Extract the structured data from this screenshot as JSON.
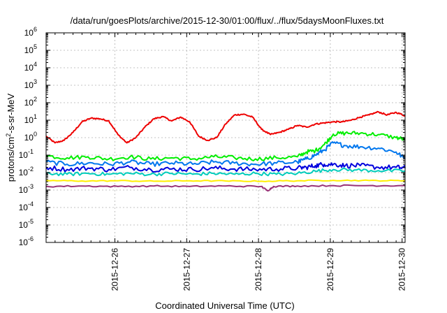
{
  "chart_data": {
    "type": "line",
    "title": "/data/run/goesPlots/archive/2015-12-30/01:00/flux/../flux/5daysMoonFluxes.txt",
    "xlabel": "Coordinated Universal Time (UTC)",
    "ylabel": "protons/cm2-s-sr-MeV",
    "ylabel_parts": [
      "protons/cm",
      "2",
      "-s-sr-MeV"
    ],
    "y_scale": "log",
    "ylim": [
      1e-06,
      1000000.0
    ],
    "y_ticks": [
      {
        "base": "10",
        "exp": "-6",
        "value": 1e-06
      },
      {
        "base": "10",
        "exp": "-5",
        "value": 1e-05
      },
      {
        "base": "10",
        "exp": "-4",
        "value": 0.0001
      },
      {
        "base": "10",
        "exp": "-3",
        "value": 0.001
      },
      {
        "base": "10",
        "exp": "-2",
        "value": 0.01
      },
      {
        "base": "10",
        "exp": "-1",
        "value": 0.1
      },
      {
        "base": "10",
        "exp": "0",
        "value": 1
      },
      {
        "base": "10",
        "exp": "1",
        "value": 10
      },
      {
        "base": "10",
        "exp": "2",
        "value": 100
      },
      {
        "base": "10",
        "exp": "3",
        "value": 1000
      },
      {
        "base": "10",
        "exp": "4",
        "value": 10000
      },
      {
        "base": "10",
        "exp": "5",
        "value": 100000
      },
      {
        "base": "10",
        "exp": "6",
        "value": 1000000
      }
    ],
    "xlim": [
      "2015-12-25 01:00",
      "2015-12-30 01:00"
    ],
    "x_ticks": [
      {
        "label": "2015-12-26",
        "value": "2015-12-26 00:00"
      },
      {
        "label": "2015-12-27",
        "value": "2015-12-27 00:00"
      },
      {
        "label": "2015-12-28",
        "value": "2015-12-28 00:00"
      },
      {
        "label": "2015-12-29",
        "value": "2015-12-29 00:00"
      },
      {
        "label": "2015-12-30",
        "value": "2015-12-30 00:00"
      }
    ],
    "grid": true,
    "series": [
      {
        "color": "#ee0000",
        "x": [
          "2015-12-25 01:00",
          "2015-12-25 04:00",
          "2015-12-25 07:00",
          "2015-12-25 10:00",
          "2015-12-25 13:00",
          "2015-12-25 16:00",
          "2015-12-25 19:00",
          "2015-12-25 22:00",
          "2015-12-26 01:00",
          "2015-12-26 04:00",
          "2015-12-26 07:00",
          "2015-12-26 10:00",
          "2015-12-26 13:00",
          "2015-12-26 16:00",
          "2015-12-26 19:00",
          "2015-12-26 22:00",
          "2015-12-27 01:00",
          "2015-12-27 04:00",
          "2015-12-27 07:00",
          "2015-12-27 10:00",
          "2015-12-27 13:00",
          "2015-12-27 16:00",
          "2015-12-27 19:00",
          "2015-12-27 22:00",
          "2015-12-28 01:00",
          "2015-12-28 04:00",
          "2015-12-28 07:00",
          "2015-12-28 10:00",
          "2015-12-28 13:00",
          "2015-12-28 16:00",
          "2015-12-28 19:00",
          "2015-12-28 22:00",
          "2015-12-29 01:00",
          "2015-12-29 04:00",
          "2015-12-29 07:00",
          "2015-12-29 10:00",
          "2015-12-29 13:00",
          "2015-12-29 16:00",
          "2015-12-29 19:00",
          "2015-12-29 22:00",
          "2015-12-30 01:00"
        ],
        "y": [
          1.2,
          0.5,
          0.7,
          2.0,
          8.0,
          13,
          12,
          9,
          1.5,
          0.5,
          1.0,
          4.0,
          12,
          16,
          9,
          15,
          8,
          1.2,
          0.7,
          1.0,
          6.0,
          20,
          22,
          15,
          3.0,
          1.5,
          2.0,
          3.0,
          5.0,
          4.0,
          6.0,
          7.0,
          8.0,
          8.0,
          10,
          15,
          20,
          30,
          20,
          28,
          18
        ]
      },
      {
        "color": "#00ee00",
        "x": [
          "2015-12-25 01:00",
          "2015-12-25 08:00",
          "2015-12-25 15:00",
          "2015-12-25 22:00",
          "2015-12-26 05:00",
          "2015-12-26 12:00",
          "2015-12-26 19:00",
          "2015-12-27 02:00",
          "2015-12-27 09:00",
          "2015-12-27 16:00",
          "2015-12-27 23:00",
          "2015-12-28 06:00",
          "2015-12-28 13:00",
          "2015-12-28 16:00",
          "2015-12-28 19:00",
          "2015-12-28 22:00",
          "2015-12-29 01:00",
          "2015-12-29 05:00",
          "2015-12-29 10:00",
          "2015-12-29 16:00",
          "2015-12-29 22:00",
          "2015-12-30 01:00"
        ],
        "y": [
          0.09,
          0.07,
          0.08,
          0.06,
          0.08,
          0.06,
          0.07,
          0.06,
          0.08,
          0.07,
          0.06,
          0.07,
          0.08,
          0.15,
          0.18,
          0.4,
          1.6,
          1.8,
          1.8,
          1.5,
          1.0,
          0.8
        ]
      },
      {
        "color": "#0077ee",
        "x": [
          "2015-12-25 01:00",
          "2015-12-25 08:00",
          "2015-12-25 15:00",
          "2015-12-25 22:00",
          "2015-12-26 05:00",
          "2015-12-26 12:00",
          "2015-12-26 19:00",
          "2015-12-27 02:00",
          "2015-12-27 09:00",
          "2015-12-27 16:00",
          "2015-12-27 23:00",
          "2015-12-28 06:00",
          "2015-12-28 13:00",
          "2015-12-28 16:00",
          "2015-12-28 19:00",
          "2015-12-28 22:00",
          "2015-12-29 01:00",
          "2015-12-29 05:00",
          "2015-12-29 10:00",
          "2015-12-29 16:00",
          "2015-12-29 22:00",
          "2015-12-30 01:00"
        ],
        "y": [
          0.04,
          0.03,
          0.035,
          0.03,
          0.04,
          0.03,
          0.035,
          0.03,
          0.04,
          0.035,
          0.03,
          0.035,
          0.04,
          0.06,
          0.1,
          0.2,
          0.5,
          0.35,
          0.3,
          0.25,
          0.15,
          0.06
        ]
      },
      {
        "color": "#0000dd",
        "x": [
          "2015-12-25 01:00",
          "2015-12-25 08:00",
          "2015-12-25 15:00",
          "2015-12-25 22:00",
          "2015-12-26 05:00",
          "2015-12-26 12:00",
          "2015-12-26 19:00",
          "2015-12-27 02:00",
          "2015-12-27 09:00",
          "2015-12-27 16:00",
          "2015-12-27 23:00",
          "2015-12-28 06:00",
          "2015-12-28 13:00",
          "2015-12-28 16:00",
          "2015-12-28 19:00",
          "2015-12-28 22:00",
          "2015-12-29 01:00",
          "2015-12-29 05:00",
          "2015-12-29 10:00",
          "2015-12-29 16:00",
          "2015-12-29 22:00",
          "2015-12-30 01:00"
        ],
        "y": [
          0.02,
          0.015,
          0.018,
          0.015,
          0.02,
          0.015,
          0.016,
          0.015,
          0.018,
          0.016,
          0.015,
          0.016,
          0.018,
          0.02,
          0.025,
          0.03,
          0.03,
          0.025,
          0.025,
          0.02,
          0.02,
          0.018
        ]
      },
      {
        "color": "#00ccbb",
        "x": [
          "2015-12-25 01:00",
          "2015-12-25 08:00",
          "2015-12-25 15:00",
          "2015-12-25 22:00",
          "2015-12-26 05:00",
          "2015-12-26 12:00",
          "2015-12-26 19:00",
          "2015-12-27 02:00",
          "2015-12-27 09:00",
          "2015-12-27 16:00",
          "2015-12-27 23:00",
          "2015-12-28 06:00",
          "2015-12-28 13:00",
          "2015-12-28 19:00",
          "2015-12-29 01:00",
          "2015-12-29 08:00",
          "2015-12-29 16:00",
          "2015-12-30 01:00"
        ],
        "y": [
          0.009,
          0.008,
          0.009,
          0.008,
          0.009,
          0.008,
          0.009,
          0.008,
          0.009,
          0.008,
          0.009,
          0.008,
          0.009,
          0.012,
          0.015,
          0.014,
          0.013,
          0.012
        ]
      },
      {
        "color": "#ffee00",
        "x": [
          "2015-12-25 01:00",
          "2015-12-25 13:00",
          "2015-12-26 01:00",
          "2015-12-26 13:00",
          "2015-12-27 01:00",
          "2015-12-27 13:00",
          "2015-12-28 01:00",
          "2015-12-28 13:00",
          "2015-12-29 01:00",
          "2015-12-29 13:00",
          "2015-12-30 01:00"
        ],
        "y": [
          0.0035,
          0.0033,
          0.0034,
          0.0032,
          0.0034,
          0.0033,
          0.0032,
          0.0034,
          0.0036,
          0.0035,
          0.0034
        ]
      },
      {
        "color": "#993377",
        "x": [
          "2015-12-25 01:00",
          "2015-12-25 13:00",
          "2015-12-26 01:00",
          "2015-12-26 13:00",
          "2015-12-27 01:00",
          "2015-12-27 13:00",
          "2015-12-28 01:00",
          "2015-12-28 03:00",
          "2015-12-28 05:00",
          "2015-12-28 13:00",
          "2015-12-29 01:00",
          "2015-12-29 13:00",
          "2015-12-30 01:00"
        ],
        "y": [
          0.0016,
          0.0017,
          0.0016,
          0.0017,
          0.0016,
          0.0017,
          0.0016,
          0.0009,
          0.0016,
          0.0017,
          0.0018,
          0.0018,
          0.0018
        ]
      }
    ]
  }
}
